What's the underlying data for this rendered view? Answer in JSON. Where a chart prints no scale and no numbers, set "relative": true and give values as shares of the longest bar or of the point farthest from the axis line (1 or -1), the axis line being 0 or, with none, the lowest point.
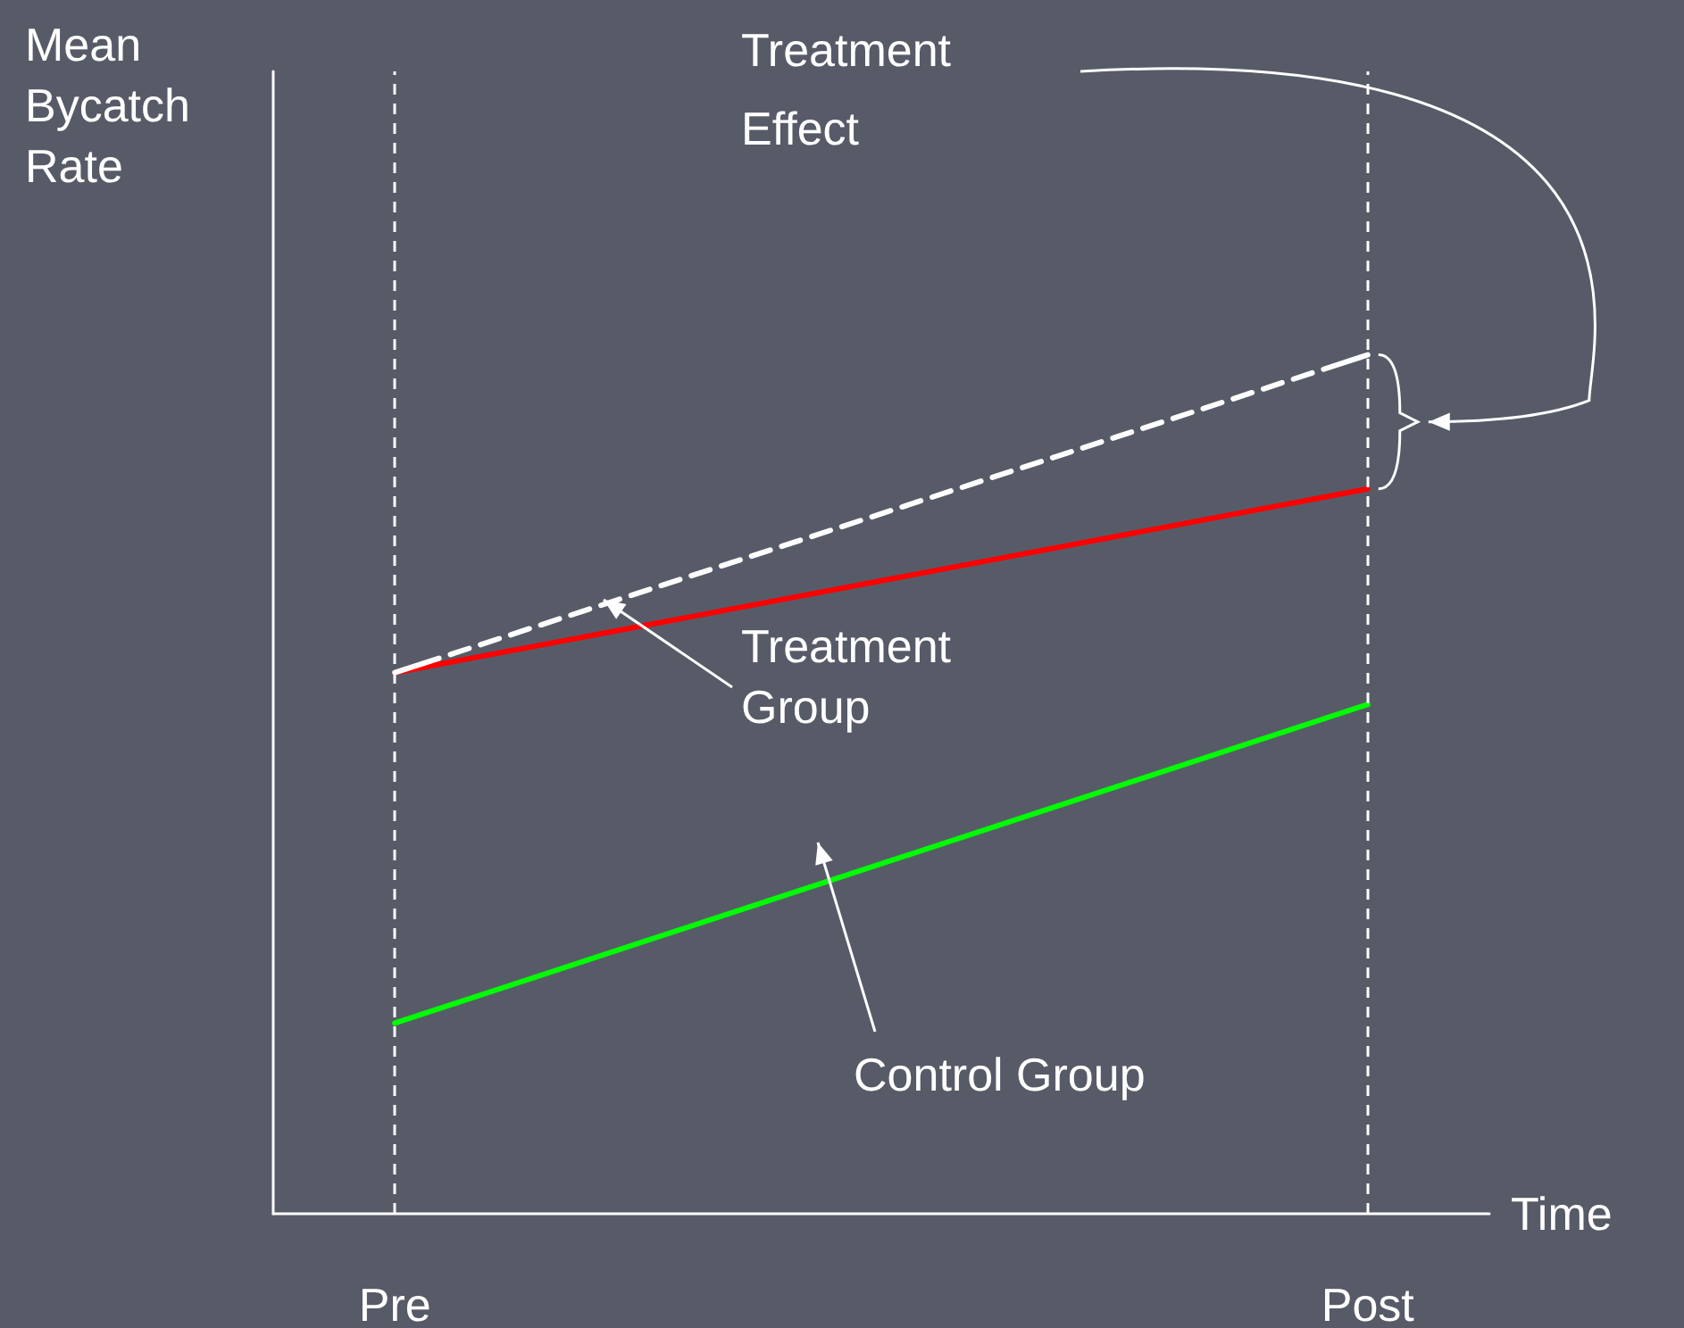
{
  "chart_data": {
    "type": "line",
    "relative": true,
    "xlabel": "Time",
    "ylabel": "Mean Bycatch Rate",
    "categories": [
      null,
      "Pre",
      null,
      null,
      null,
      null,
      null,
      null,
      null,
      null,
      null,
      null,
      null,
      "Post",
      null
    ],
    "series": [
      {
        "color": "#ffffff",
        "values": [
          null,
          0.63,
          null,
          null,
          null,
          null,
          null,
          null,
          null,
          null,
          null,
          null,
          null,
          1,
          null
        ],
        "line_style": "dashed"
      },
      {
        "name": "Treatment Group",
        "color": "#ff0000",
        "values": [
          null,
          0.63,
          null,
          null,
          null,
          null,
          null,
          null,
          null,
          null,
          null,
          null,
          null,
          0.844,
          null
        ]
      },
      {
        "name": "Control Group",
        "color": "#00ff00",
        "values": [
          null,
          0.222,
          null,
          null,
          null,
          null,
          null,
          null,
          null,
          null,
          null,
          null,
          null,
          0.593,
          null
        ]
      }
    ],
    "annotations": [
      "Treatment Effect"
    ],
    "ref_lines": [
      {
        "axis": "x",
        "value": "Pre",
        "color": "#ffffff",
        "line_style": "dashed"
      },
      {
        "axis": "x",
        "value": "Post",
        "color": "#ffffff",
        "line_style": "dashed"
      }
    ],
    "marker": "none",
    "line_style": "solid",
    "grid": false,
    "legend": false
  }
}
